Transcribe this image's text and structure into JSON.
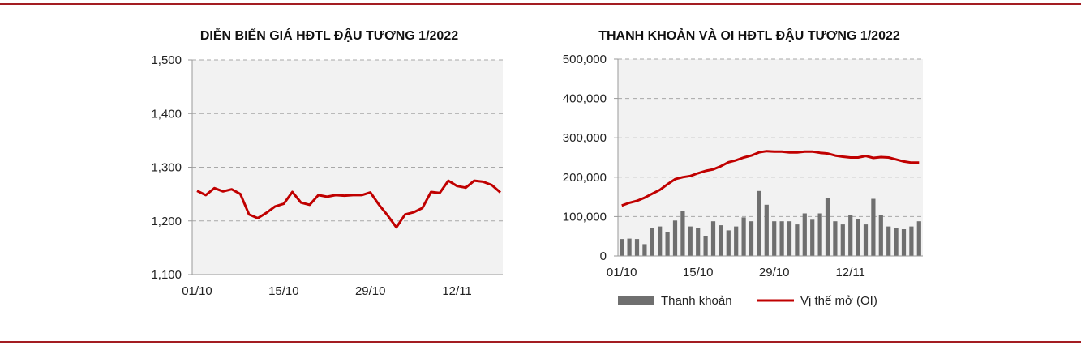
{
  "colors": {
    "rule": "#a31d22",
    "line": "#c00000",
    "bar": "#6f6f6f",
    "plot_bg": "#f2f2f2",
    "grid": "#a8a8a8"
  },
  "chart_data": [
    {
      "type": "line",
      "title": "DIỄN BIẾN GIÁ HĐTL ĐẬU TƯƠNG 1/2022",
      "xlabel": "",
      "ylabel": "",
      "ylim": [
        1100,
        1500
      ],
      "yticks": [
        1100,
        1200,
        1300,
        1400,
        1500
      ],
      "ytick_labels": [
        "1,100",
        "1,200",
        "1,300",
        "1,400",
        "1,500"
      ],
      "xtick_labels": [
        "01/10",
        "15/10",
        "29/10",
        "12/11"
      ],
      "xtick_index": [
        0,
        10,
        20,
        30
      ],
      "grid": true,
      "series": [
        {
          "values": [
            1256,
            1248,
            1261,
            1255,
            1259,
            1250,
            1212,
            1205,
            1215,
            1227,
            1232,
            1254,
            1234,
            1230,
            1248,
            1245,
            1248,
            1247,
            1248,
            1248,
            1253,
            1230,
            1210,
            1188,
            1212,
            1216,
            1224,
            1254,
            1252,
            1275,
            1265,
            1262,
            1275,
            1273,
            1267,
            1253
          ]
        }
      ]
    },
    {
      "type": "bar",
      "title": "THANH KHOẢN VÀ OI HĐTL ĐẬU TƯƠNG 1/2022",
      "xlabel": "",
      "ylabel": "",
      "ylim": [
        0,
        500000
      ],
      "yticks": [
        0,
        100000,
        200000,
        300000,
        400000,
        500000
      ],
      "ytick_labels": [
        "0",
        "100,000",
        "200,000",
        "300,000",
        "400,000",
        "500,000"
      ],
      "xtick_labels": [
        "01/10",
        "15/10",
        "29/10",
        "12/11"
      ],
      "xtick_index": [
        0,
        10,
        20,
        30
      ],
      "grid": true,
      "legend": "bottom",
      "series": [
        {
          "name": "Thanh khoản",
          "type": "bar",
          "values": [
            43000,
            44000,
            43000,
            30000,
            70000,
            75000,
            60000,
            90000,
            115000,
            75000,
            70000,
            50000,
            88000,
            78000,
            65000,
            75000,
            98000,
            88000,
            165000,
            130000,
            88000,
            88000,
            88000,
            80000,
            108000,
            92000,
            108000,
            148000,
            88000,
            80000,
            103000,
            93000,
            80000,
            145000,
            103000,
            75000,
            70000,
            68000,
            75000,
            88000
          ]
        },
        {
          "name": "Vị thế mở (OI)",
          "type": "line",
          "values": [
            128000,
            135000,
            140000,
            148000,
            158000,
            168000,
            182000,
            195000,
            200000,
            203000,
            210000,
            216000,
            220000,
            228000,
            238000,
            243000,
            250000,
            255000,
            263000,
            266000,
            265000,
            265000,
            263000,
            263000,
            265000,
            265000,
            262000,
            260000,
            255000,
            252000,
            250000,
            250000,
            254000,
            249000,
            251000,
            250000,
            245000,
            240000,
            237000,
            237000
          ]
        }
      ]
    }
  ]
}
